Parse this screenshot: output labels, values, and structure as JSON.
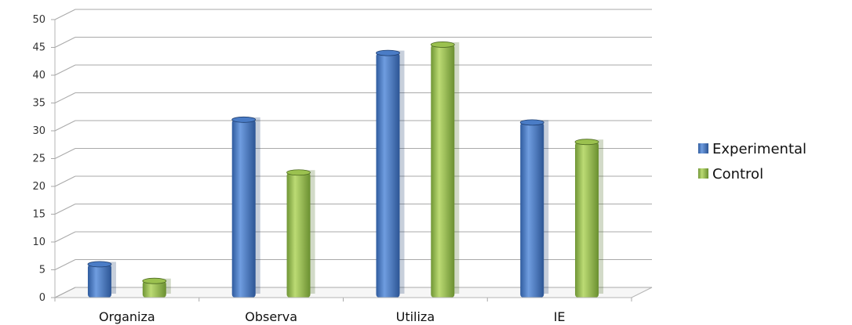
{
  "chart_data": {
    "type": "bar",
    "title": "",
    "xlabel": "",
    "ylabel": "",
    "categories": [
      "Organiza",
      "Observa",
      "Utiliza",
      "IE"
    ],
    "series": [
      {
        "name": "Experimental",
        "values": [
          6,
          32,
          44,
          31.5
        ],
        "color": "#4a7cc6"
      },
      {
        "name": "Control",
        "values": [
          3,
          22.5,
          45.5,
          28
        ],
        "color": "#9bc14f"
      }
    ],
    "ylim": [
      0,
      50
    ],
    "yticks": [
      "0",
      "5",
      "10",
      "15",
      "20",
      "25",
      "30",
      "35",
      "40",
      "45",
      "50"
    ],
    "grid": true,
    "legend_position": "right"
  }
}
